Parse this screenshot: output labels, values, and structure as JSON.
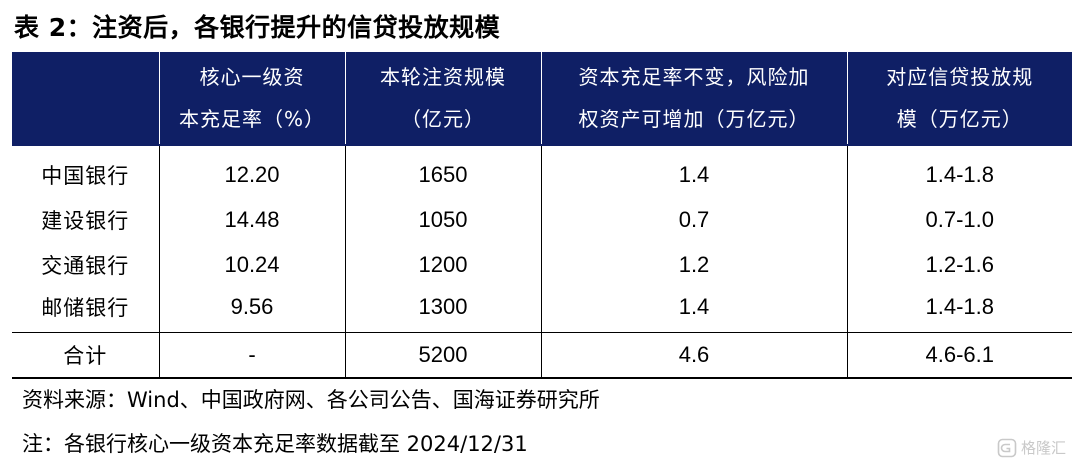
{
  "title": "表 2：注资后，各银行提升的信贷投放规模",
  "table": {
    "header": [
      [
        "",
        ""
      ],
      [
        "核心一级资",
        "本充足率（%）"
      ],
      [
        "本轮注资规模",
        "（亿元）"
      ],
      [
        "资本充足率不变，风险加",
        "权资产可增加（万亿元）"
      ],
      [
        "对应信贷投放规",
        "模（万亿元）"
      ]
    ],
    "rows": [
      [
        "中国银行",
        "12.20",
        "1650",
        "1.4",
        "1.4-1.8"
      ],
      [
        "建设银行",
        "14.48",
        "1050",
        "0.7",
        "0.7-1.0"
      ],
      [
        "交通银行",
        "10.24",
        "1200",
        "1.2",
        "1.2-1.6"
      ],
      [
        "邮储银行",
        "9.56",
        "1300",
        "1.4",
        "1.4-1.8"
      ]
    ],
    "total": [
      "合计",
      "-",
      "5200",
      "4.6",
      "4.6-6.1"
    ]
  },
  "source": "资料来源：Wind、中国政府网、各公司公告、国海证券研究所",
  "footnote": "注：各银行核心一级资本充足率数据截至 2024/12/31",
  "watermark": "格隆汇",
  "colors": {
    "header_bg": "#0f1f65",
    "header_text": "#ffffff",
    "watermark": "#c9c9c9"
  }
}
